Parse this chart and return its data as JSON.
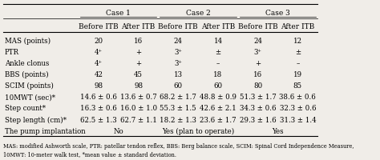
{
  "col_groups": [
    {
      "label": "Case 1",
      "span": 2
    },
    {
      "label": "Case 2",
      "span": 2
    },
    {
      "label": "Case 3",
      "span": 2
    }
  ],
  "col_headers": [
    "Before ITB",
    "After ITB",
    "Before ITB",
    "After ITB",
    "Before ITB",
    "After ITB"
  ],
  "row_headers": [
    "MAS (points)",
    "PTR",
    "Ankle clonus",
    "BBS (points)",
    "SCIM (points)",
    "10MWT (sec)*",
    "Step count*",
    "Step length (cm)*",
    "The pump implantation"
  ],
  "data": [
    [
      "20",
      "16",
      "24",
      "14",
      "24",
      "12"
    ],
    [
      "4⁺",
      "+",
      "3⁺",
      "±",
      "3⁺",
      "±"
    ],
    [
      "4⁺",
      "+",
      "3⁺",
      "–",
      "+",
      "–"
    ],
    [
      "42",
      "45",
      "13",
      "18",
      "16",
      "19"
    ],
    [
      "98",
      "98",
      "60",
      "60",
      "80",
      "85"
    ],
    [
      "14.6 ± 0.6",
      "13.6 ± 0.7",
      "68.2 ± 1.7",
      "48.8 ± 0.9",
      "51.3 ± 1.7",
      "38.6 ± 0.6"
    ],
    [
      "16.3 ± 0.6",
      "16.0 ± 1.0",
      "55.3 ± 1.5",
      "42.6 ± 2.1",
      "34.3 ± 0.6",
      "32.3 ± 0.6"
    ],
    [
      "62.5 ± 1.3",
      "62.7 ± 1.1",
      "18.2 ± 1.3",
      "23.6 ± 1.7",
      "29.3 ± 1.6",
      "31.3 ± 1.4"
    ],
    [
      "No",
      "",
      "Yes (plan to operate)",
      "",
      "Yes",
      ""
    ]
  ],
  "pump_texts": [
    [
      0,
      "No"
    ],
    [
      1,
      "Yes (plan to operate)"
    ],
    [
      2,
      "Yes"
    ]
  ],
  "footnote": "MAS: modified Ashworth scale, PTR: patellar tendon reflex, BBS: Berg balance scale, SCIM: Spinal Cord Independence Measure,\n10MWT: 10-meter walk test, *mean value ± standard deviation.",
  "bg_color": "#f0ede8",
  "font_size": 6.2,
  "header_font_size": 6.5
}
